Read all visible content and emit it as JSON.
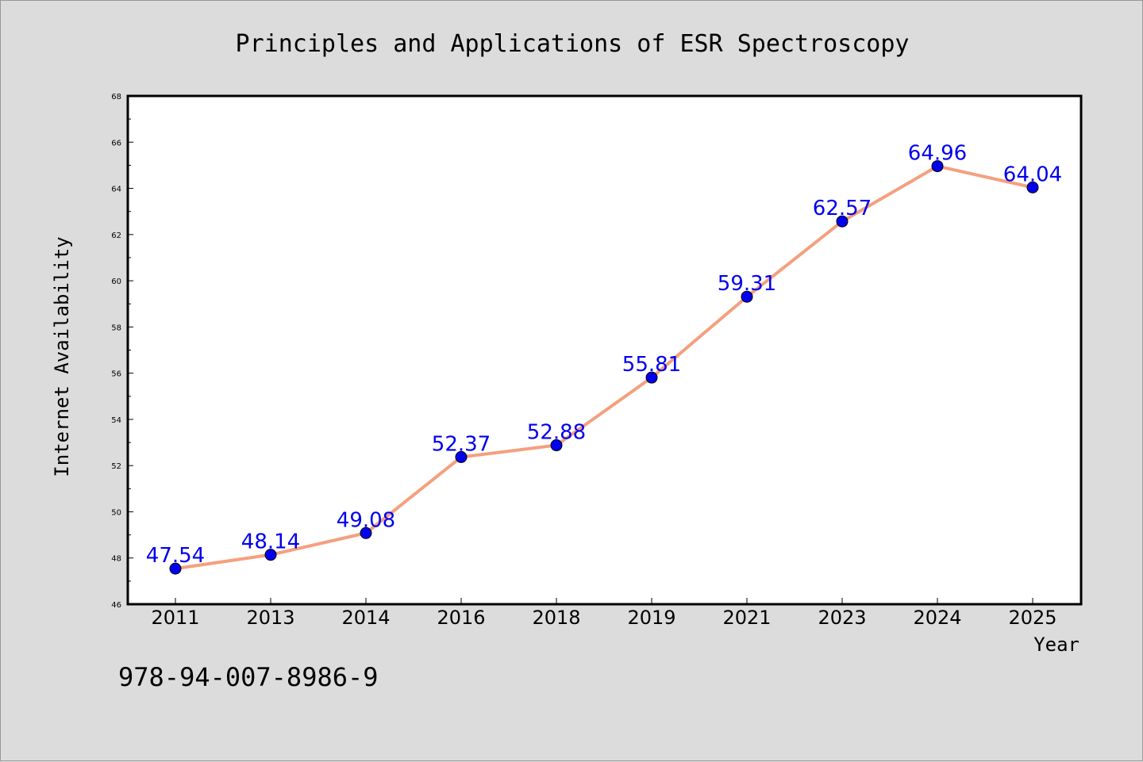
{
  "chart_data": {
    "type": "line",
    "title": "Principles and Applications of ESR Spectroscopy",
    "xlabel": "Year",
    "ylabel": "Internet Availability",
    "categories": [
      "2011",
      "2013",
      "2014",
      "2016",
      "2018",
      "2019",
      "2021",
      "2023",
      "2024",
      "2025"
    ],
    "series": [
      {
        "values": [
          47.54,
          48.14,
          49.08,
          52.37,
          52.88,
          55.81,
          59.31,
          62.57,
          64.96,
          64.04
        ]
      }
    ],
    "data_labels": [
      "47.54",
      "48.14",
      "49.08",
      "52.37",
      "52.88",
      "55.81",
      "59.31",
      "62.57",
      "64.96",
      "64.04"
    ],
    "ylim": [
      46,
      68
    ],
    "yticks": [
      "46",
      "48",
      "50",
      "52",
      "54",
      "56",
      "58",
      "60",
      "62",
      "64",
      "66",
      "68"
    ],
    "grid": false,
    "legend": "none",
    "colors": {
      "line": "#f4a07e",
      "marker": "#0000ee",
      "label": "#0000ee",
      "background": "#dcdcdc",
      "plot_background": "#ffffff"
    }
  },
  "footer": {
    "isbn": "978-94-007-8986-9"
  }
}
